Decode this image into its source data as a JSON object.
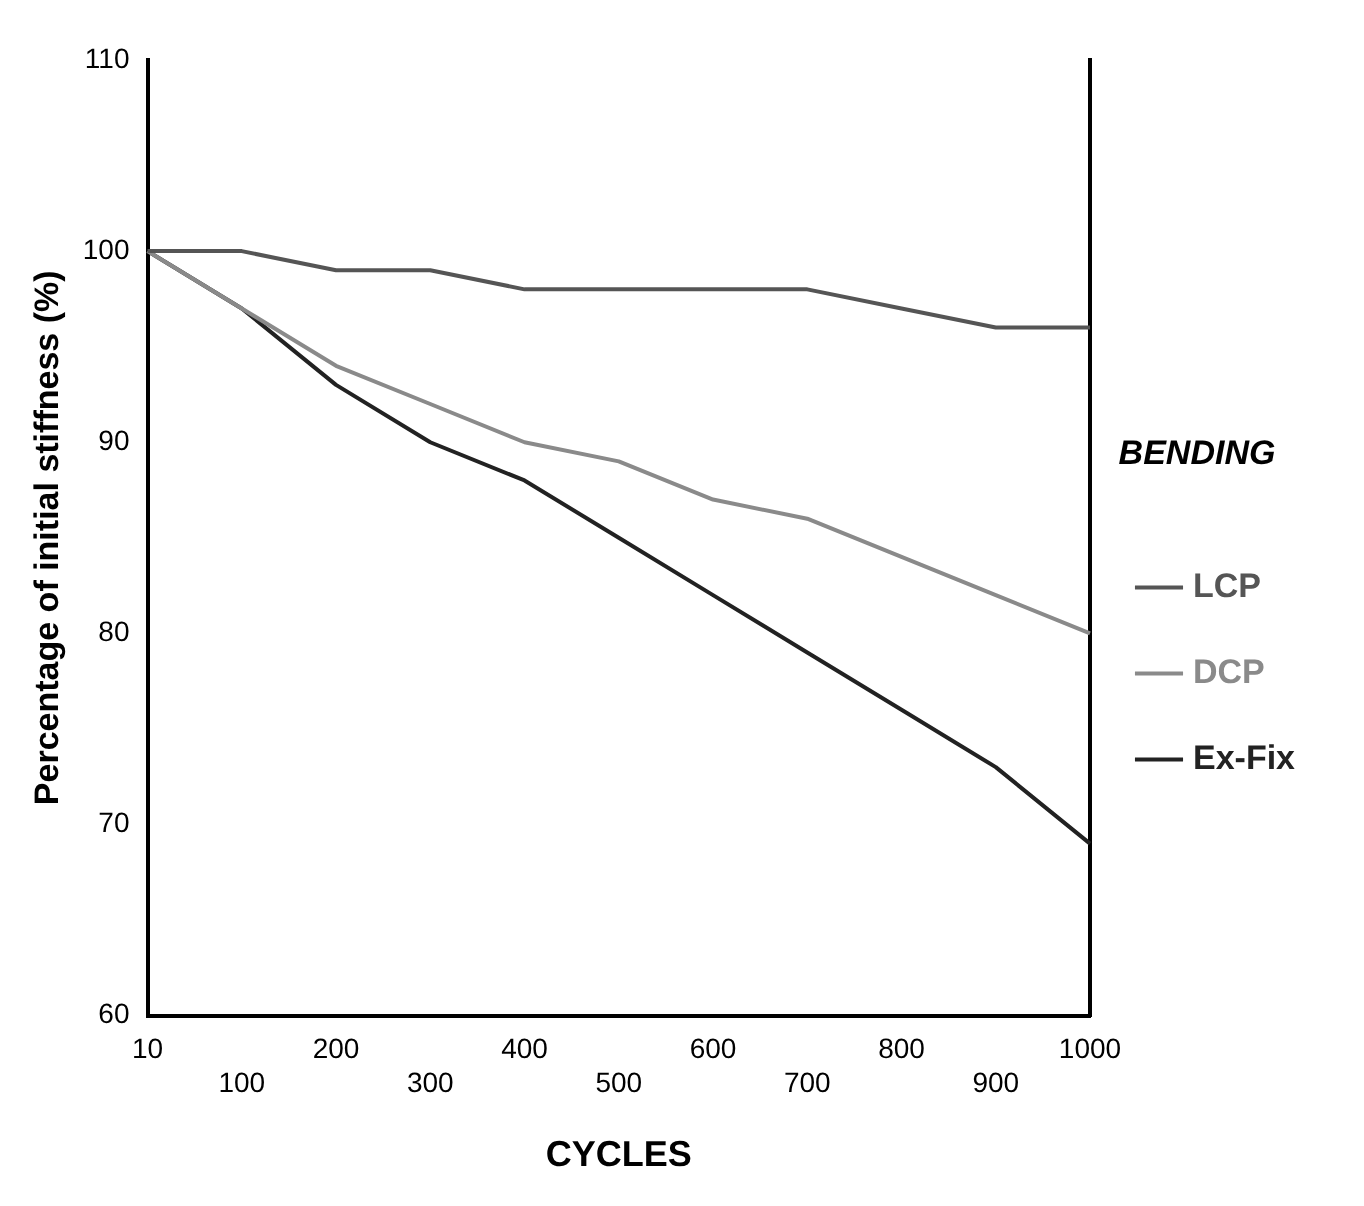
{
  "chart_data": {
    "type": "line",
    "xlabel": "CYCLES",
    "ylabel": "Percentage of initial stiffness (%)",
    "legend_title": "BENDING",
    "categories": [
      "10",
      "100",
      "200",
      "300",
      "400",
      "500",
      "600",
      "700",
      "800",
      "900",
      "1000"
    ],
    "series": [
      {
        "name": "LCP",
        "color": "#555555",
        "values": [
          100,
          100,
          99,
          99,
          98,
          98,
          98,
          98,
          97,
          96,
          96
        ]
      },
      {
        "name": "DCP",
        "color": "#8a8a8a",
        "values": [
          100,
          97,
          94,
          92,
          90,
          89,
          87,
          86,
          84,
          82,
          80
        ]
      },
      {
        "name": "Ex-Fix",
        "color": "#222222",
        "values": [
          100,
          97,
          93,
          90,
          88,
          85,
          82,
          79,
          76,
          73,
          69
        ]
      }
    ],
    "ylim": [
      60,
      110
    ],
    "yticks": [
      60,
      70,
      80,
      90,
      100,
      110
    ],
    "grid": false,
    "legend": "right",
    "marker": "none",
    "line_style": "solid"
  }
}
